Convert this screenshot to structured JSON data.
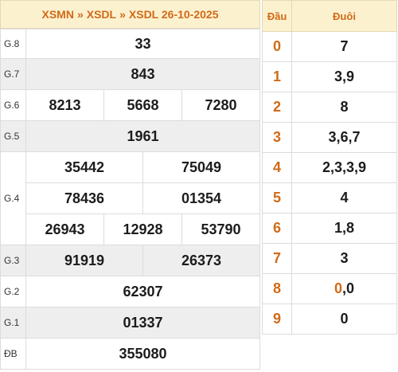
{
  "breadcrumb": {
    "region": "XSMN",
    "province": "XSDL",
    "page": "XSDL 26-10-2025",
    "separator": "»"
  },
  "results": {
    "g8": {
      "label": "G.8",
      "numbers": [
        "33"
      ]
    },
    "g7": {
      "label": "G.7",
      "numbers": [
        "843"
      ]
    },
    "g6": {
      "label": "G.6",
      "numbers": [
        "8213",
        "5668",
        "7280"
      ]
    },
    "g5": {
      "label": "G.5",
      "numbers": [
        "1961"
      ]
    },
    "g4": {
      "label": "G.4",
      "numbers": [
        "35442",
        "75049",
        "78436",
        "01354",
        "26943",
        "12928",
        "53790"
      ]
    },
    "g3": {
      "label": "G.3",
      "numbers": [
        "91919",
        "26373"
      ]
    },
    "g2": {
      "label": "G.2",
      "numbers": [
        "62307"
      ]
    },
    "g1": {
      "label": "G.1",
      "numbers": [
        "01337"
      ]
    },
    "db": {
      "label": "ĐB",
      "numbers": [
        "355080"
      ]
    }
  },
  "loto": {
    "head_label": "Đầu",
    "tail_label": "Đuôi",
    "rows": [
      {
        "head": "0",
        "tail": "7"
      },
      {
        "head": "1",
        "tail": "3,9"
      },
      {
        "head": "2",
        "tail": "8"
      },
      {
        "head": "3",
        "tail": "3,6,7"
      },
      {
        "head": "4",
        "tail": "2,3,3,9"
      },
      {
        "head": "5",
        "tail": "4"
      },
      {
        "head": "6",
        "tail": "1,8"
      },
      {
        "head": "7",
        "tail": "3"
      },
      {
        "head": "8",
        "tail_first": "0",
        "tail_sep": ",",
        "tail_rest": "0"
      },
      {
        "head": "9",
        "tail": "0"
      }
    ]
  },
  "colors": {
    "accent": "#d06a17",
    "highlight": "#e02020",
    "header_bg": "#fcf1cf"
  }
}
